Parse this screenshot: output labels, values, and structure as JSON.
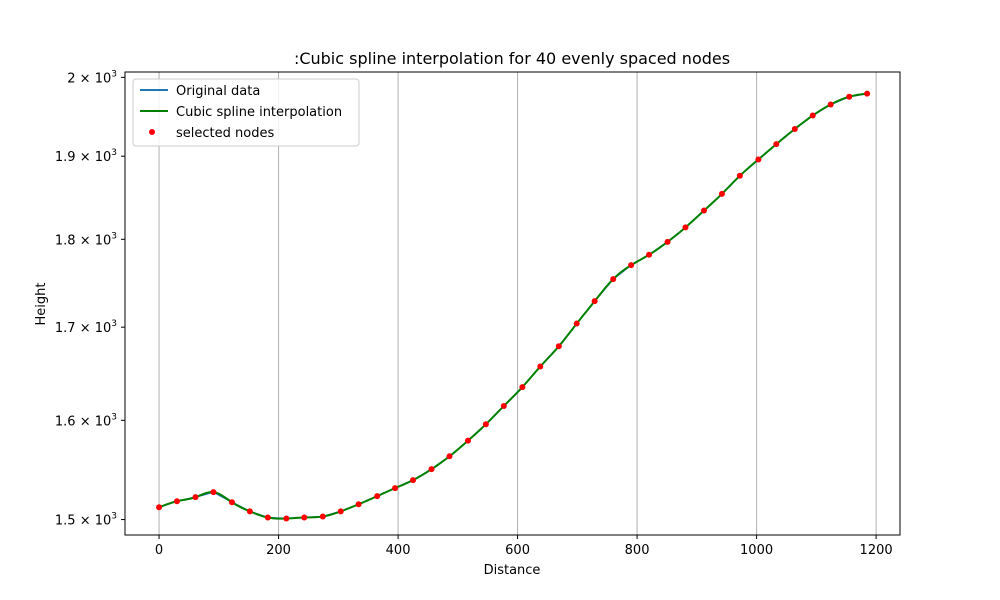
{
  "chart_data": {
    "type": "line",
    "title": ":Cubic spline interpolation for 40 evenly spaced nodes",
    "xlabel": "Distance",
    "ylabel": "Height",
    "xlim": [
      -57,
      1240
    ],
    "ylim": [
      1485,
      2007
    ],
    "y_scale": "log",
    "grid": "x-only",
    "legend_position": "top-left",
    "x_ticks": [
      0,
      200,
      400,
      600,
      800,
      1000,
      1200
    ],
    "x_tick_labels": [
      "0",
      "200",
      "400",
      "600",
      "800",
      "1000",
      "1200"
    ],
    "y_ticks": [
      1500,
      1600,
      1700,
      1800,
      1900,
      2000
    ],
    "y_tick_labels": [
      {
        "base": "1.5 × 10",
        "exp": "3"
      },
      {
        "base": "1.6 × 10",
        "exp": "3"
      },
      {
        "base": "1.7 × 10",
        "exp": "3"
      },
      {
        "base": "1.8 × 10",
        "exp": "3"
      },
      {
        "base": "1.9 × 10",
        "exp": "3"
      },
      {
        "base": "2 × 10",
        "exp": "3"
      }
    ],
    "series": [
      {
        "name": "Original data",
        "kind": "line",
        "color": "#1f77b4"
      },
      {
        "name": "Cubic spline interpolation",
        "kind": "line",
        "color": "#008000"
      },
      {
        "name": "selected nodes",
        "kind": "scatter",
        "color": "#ff0000"
      }
    ],
    "x": [
      0,
      30,
      61,
      91,
      122,
      152,
      182,
      213,
      243,
      274,
      304,
      334,
      365,
      395,
      425,
      456,
      486,
      517,
      547,
      577,
      608,
      638,
      669,
      699,
      729,
      760,
      790,
      820,
      851,
      881,
      912,
      942,
      972,
      1003,
      1033,
      1064,
      1094,
      1124,
      1155,
      1185
    ],
    "y": [
      1512,
      1518,
      1522,
      1527,
      1517,
      1508,
      1502,
      1501,
      1502,
      1503,
      1508,
      1515,
      1523,
      1531,
      1539,
      1550,
      1563,
      1579,
      1596,
      1615,
      1635,
      1657,
      1679,
      1704,
      1729,
      1754,
      1770,
      1782,
      1797,
      1814,
      1834,
      1854,
      1876,
      1896,
      1915,
      1934,
      1951,
      1965,
      1975,
      1979
    ]
  }
}
